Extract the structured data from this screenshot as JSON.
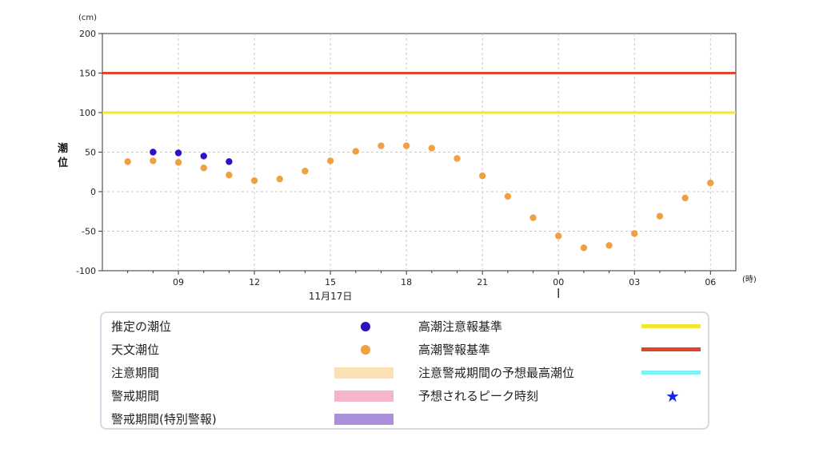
{
  "chart_data": {
    "type": "scatter",
    "y_unit": "(cm)",
    "x_unit": "(時)",
    "ylabel": "潮位",
    "ylim": [
      -100,
      200
    ],
    "yticks": [
      200,
      150,
      100,
      50,
      0,
      -50,
      -100
    ],
    "x_start_hour": 6,
    "x_end_hour": 31,
    "x_tick_hours": [
      9,
      12,
      15,
      18,
      21,
      24,
      27,
      30
    ],
    "x_tick_labels": [
      "09",
      "12",
      "15",
      "18",
      "21",
      "00",
      "03",
      "06"
    ],
    "date_label": "11月17日",
    "date_label_hour": 15,
    "day_boundary_hour": 24,
    "thresholds": [
      {
        "name": "高潮警報基準",
        "value": 150,
        "color": "#e0452b"
      },
      {
        "name": "高潮注意報基準",
        "value": 100,
        "color": "#f2e630"
      }
    ],
    "series": [
      {
        "name": "推定の潮位",
        "color": "#2f10c2",
        "points": [
          [
            8,
            50
          ],
          [
            9,
            49
          ],
          [
            10,
            45
          ],
          [
            11,
            38
          ]
        ]
      },
      {
        "name": "天文潮位",
        "color": "#f0a040",
        "points": [
          [
            7,
            38
          ],
          [
            8,
            39
          ],
          [
            9,
            37
          ],
          [
            10,
            30
          ],
          [
            11,
            21
          ],
          [
            12,
            14
          ],
          [
            13,
            16
          ],
          [
            14,
            26
          ],
          [
            15,
            39
          ],
          [
            16,
            51
          ],
          [
            17,
            58
          ],
          [
            18,
            58
          ],
          [
            19,
            55
          ],
          [
            20,
            42
          ],
          [
            21,
            20
          ],
          [
            22,
            -6
          ],
          [
            23,
            -33
          ],
          [
            24,
            -56
          ],
          [
            25,
            -71
          ],
          [
            26,
            -68
          ],
          [
            27,
            -53
          ],
          [
            28,
            -31
          ],
          [
            29,
            -8
          ],
          [
            30,
            11
          ]
        ]
      }
    ]
  },
  "legend": {
    "items": [
      {
        "label": "推定の潮位",
        "symbol": "dot",
        "color": "#2f10c2"
      },
      {
        "label": "天文潮位",
        "symbol": "dot",
        "color": "#f0a040"
      },
      {
        "label": "注意期間",
        "symbol": "bar",
        "color": "#fae0b4"
      },
      {
        "label": "警戒期間",
        "symbol": "bar",
        "color": "#f5b5cc"
      },
      {
        "label": "警戒期間(特別警報)",
        "symbol": "bar",
        "color": "#ab8fdb"
      },
      {
        "label": "高潮注意報基準",
        "symbol": "line",
        "color": "#f2e630"
      },
      {
        "label": "高潮警報基準",
        "symbol": "line",
        "color": "#e0452b"
      },
      {
        "label": "注意警戒期間の予想最高潮位",
        "symbol": "line",
        "color": "#7cf2f2"
      },
      {
        "label": "予想されるピーク時刻",
        "symbol": "star",
        "color": "#1a23e6",
        "glyph": "★"
      }
    ]
  }
}
